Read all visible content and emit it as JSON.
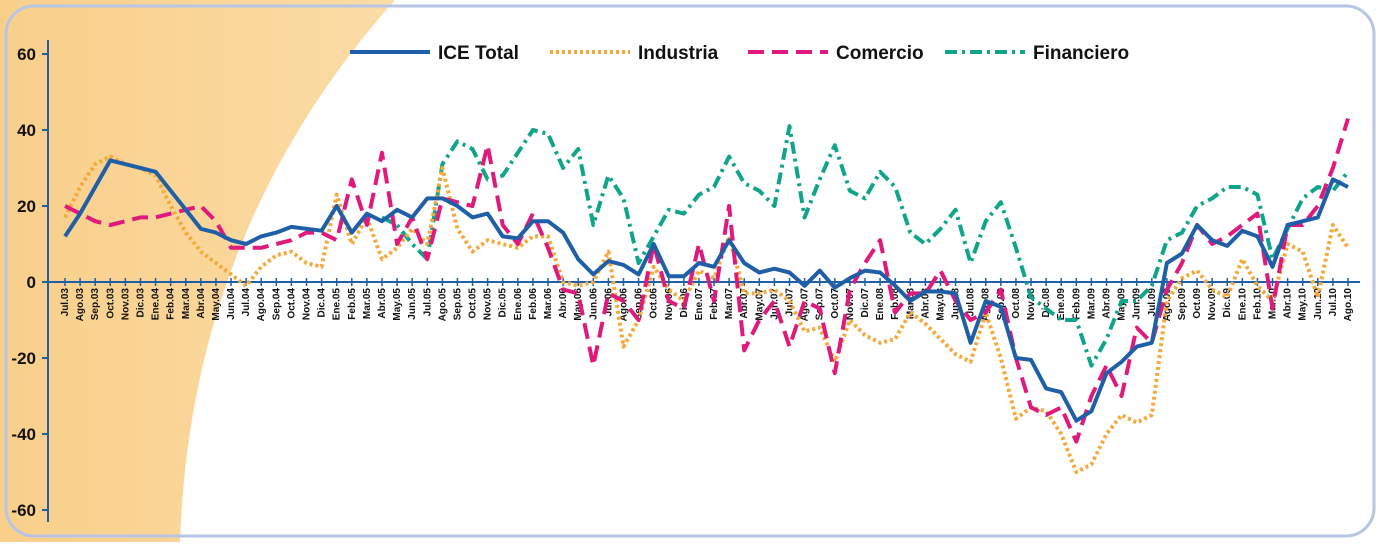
{
  "chart_data": {
    "type": "line",
    "categories": [
      "Jul.03",
      "Ago.03",
      "Sep.03",
      "Oct.03",
      "Nov.03",
      "Dic.03",
      "Ene.04",
      "Feb.04",
      "Mar.04",
      "Abr.04",
      "May.04",
      "Jun.04",
      "Jul.04",
      "Ago.04",
      "Sep.04",
      "Oct.04",
      "Nov.04",
      "Dic.04",
      "Ene.05",
      "Feb.05",
      "Mar.05",
      "Abr.05",
      "May.05",
      "Jun.05",
      "Jul.05",
      "Ago.05",
      "Sep.05",
      "Oct.05",
      "Nov.05",
      "Dic.05",
      "Ene.06",
      "Feb.06",
      "Mar.06",
      "Abr.06",
      "May.06",
      "Jun.06",
      "Jul.06",
      "Ago.06",
      "Sep.06",
      "Oct.06",
      "Nov.06",
      "Dic.06",
      "Ene.07",
      "Feb.07",
      "Mar.07",
      "Abr.07",
      "May.07",
      "Jun.07",
      "Jul.07",
      "Ago.07",
      "Sep.07",
      "Oct.07",
      "Nov.07",
      "Dic.07",
      "Ene.08",
      "Feb.08",
      "Mar.08",
      "Abr.08",
      "May.08",
      "Jun.08",
      "Jul.08",
      "Ago.08",
      "Sep.08",
      "Oct.08",
      "Nov.08",
      "Dic.08",
      "Ene.09",
      "Feb.09",
      "Mar.09",
      "Abr.09",
      "May.09",
      "Jun.09",
      "Jul.09",
      "Ago.09",
      "Sep.09",
      "Oct.09",
      "Nov.09",
      "Dic.09",
      "Ene.10",
      "Feb.10",
      "Mar.10",
      "Abr.10",
      "May.10",
      "Jun.10",
      "Jul.10",
      "Ago.10"
    ],
    "series": [
      {
        "name": "ICE Total",
        "color": "#1f5fa8",
        "line_style": "solid",
        "values": [
          12,
          18,
          25,
          32,
          31,
          30,
          29,
          24,
          19,
          14,
          13,
          11,
          10,
          12,
          13,
          14.5,
          14,
          13.5,
          20,
          13,
          18,
          16,
          19,
          17,
          22,
          22,
          20,
          17,
          18,
          12,
          11.5,
          16,
          16,
          13,
          6,
          2,
          5.5,
          4.5,
          2,
          10,
          1.5,
          1.5,
          5,
          4,
          11,
          5,
          2.5,
          3.5,
          2.5,
          -1,
          3,
          -1.5,
          1,
          3,
          2.5,
          -1,
          -5,
          -2.5,
          -2.5,
          -3,
          -16,
          -5,
          -6.5,
          -20,
          -20.5,
          -28,
          -29,
          -36.5,
          -34,
          -24,
          -21,
          -17,
          -16,
          5,
          7.5,
          15,
          11,
          9.5,
          13.5,
          12,
          4,
          15,
          16,
          17,
          27,
          25
        ]
      },
      {
        "name": "Industria",
        "color": "#f5a93a",
        "line_style": "dotted",
        "values": [
          17,
          25,
          31,
          33,
          31,
          30,
          28,
          20,
          13,
          8,
          5,
          2,
          -1,
          4,
          7,
          8,
          5,
          4,
          23,
          10,
          17,
          6,
          9,
          14,
          10,
          30,
          14,
          8,
          11,
          10,
          9,
          12,
          12,
          0,
          -1,
          0,
          8,
          -17,
          -10,
          4,
          -2,
          -5,
          3,
          1,
          12,
          -3,
          -3,
          -2,
          -5,
          -13,
          -12,
          -21,
          -10,
          -14,
          -16,
          -15,
          -8,
          -11,
          -15,
          -19,
          -21,
          -8,
          -20,
          -36,
          -33,
          -34,
          -40,
          -50,
          -48,
          -40,
          -35,
          -37,
          -35,
          -5,
          1,
          3,
          -2,
          -4,
          6,
          -1,
          -5,
          10,
          8,
          -4,
          15,
          9
        ]
      },
      {
        "name": "Comercio",
        "color": "#e0197d",
        "line_style": "dashed",
        "values": [
          20,
          18,
          16,
          15,
          16,
          17,
          17,
          18,
          19,
          20,
          16,
          9,
          9,
          9,
          10,
          11,
          13,
          13,
          11,
          27,
          15,
          34,
          10,
          17,
          6,
          22,
          21,
          20,
          36,
          15,
          10,
          18,
          9,
          -2,
          -3,
          -22,
          -3,
          -5,
          -10,
          10,
          -5,
          -7,
          10,
          -5,
          20,
          -18,
          -10,
          -5,
          -17,
          -5,
          -7,
          -24,
          -2,
          5,
          11,
          -8,
          -3,
          -3,
          3,
          -5,
          -10,
          -8,
          -2,
          -20,
          -33,
          -35,
          -33,
          -42,
          -30,
          -22,
          -30,
          -12,
          -16,
          -2,
          5,
          15,
          10,
          12,
          15,
          18,
          -7,
          15,
          15,
          20,
          30,
          43
        ]
      },
      {
        "name": "Financiero",
        "color": "#10a58a",
        "line_style": "dashdot",
        "values": [
          null,
          null,
          null,
          null,
          null,
          null,
          null,
          null,
          null,
          null,
          null,
          null,
          null,
          null,
          null,
          null,
          null,
          null,
          null,
          null,
          null,
          17,
          15,
          10,
          6,
          31,
          37,
          35,
          27,
          28,
          34,
          40,
          39,
          30,
          35,
          15,
          28,
          22,
          5,
          12,
          19,
          18,
          23,
          25,
          33,
          26,
          24,
          20,
          41,
          17,
          27,
          36,
          24,
          22,
          29,
          25,
          13,
          10,
          14,
          19,
          5,
          16,
          21,
          9,
          -4,
          -7,
          -10,
          -10,
          -22,
          -15,
          -5,
          -5,
          -1,
          11,
          13,
          20,
          22,
          25,
          25,
          23,
          6,
          14,
          22,
          25,
          24,
          29
        ]
      }
    ],
    "ylim": [
      -60,
      60
    ],
    "yticks": [
      -60,
      -40,
      -20,
      0,
      20,
      40,
      60
    ]
  }
}
